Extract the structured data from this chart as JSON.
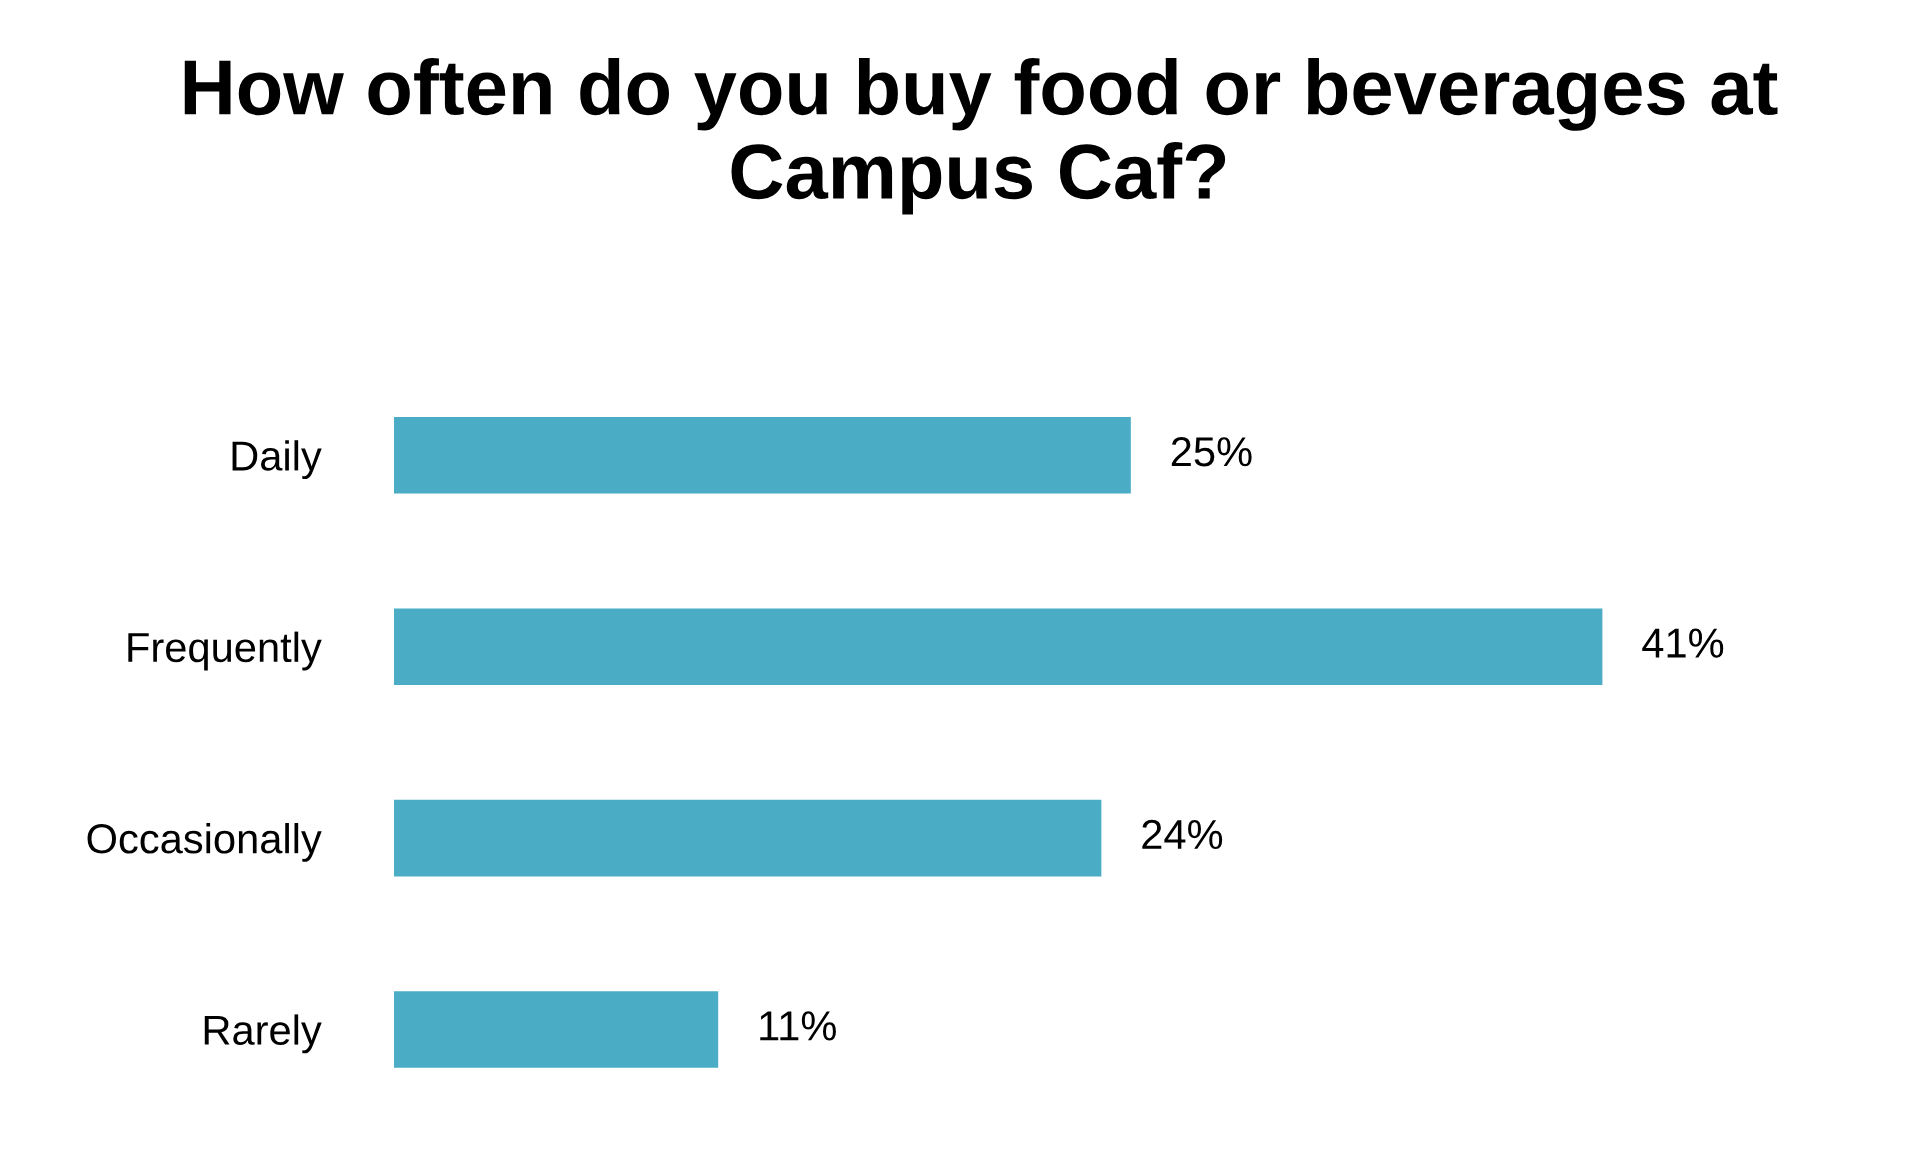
{
  "chart_data": {
    "type": "bar",
    "orientation": "horizontal",
    "title": "How often do you buy food or beverages at Campus Caf?",
    "categories": [
      "Daily",
      "Frequently",
      "Occasionally",
      "Rarely"
    ],
    "values": [
      25,
      41,
      24,
      11
    ],
    "value_labels": [
      "25%",
      "41%",
      "24%",
      "11%"
    ],
    "color": "#4bacc6",
    "grid": false,
    "legend": false
  }
}
